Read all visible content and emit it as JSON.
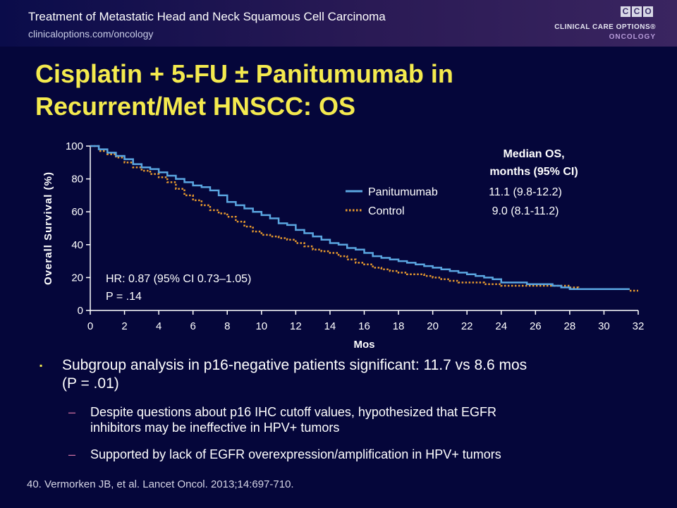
{
  "header": {
    "title": "Treatment of Metastatic Head and Neck Squamous Cell Carcinoma",
    "url": "clinicaloptions.com/oncology",
    "logo_letters": [
      "C",
      "C",
      "O"
    ],
    "logo_line1": "CLINICAL CARE OPTIONS®",
    "logo_line2": "ONCOLOGY"
  },
  "slide": {
    "title_line1": "Cisplatin + 5-FU ± Panitumumab in",
    "title_line2": "Recurrent/Met HNSCC: OS"
  },
  "chart_data": {
    "type": "line",
    "xlabel": "Mos",
    "ylabel": "Overall Survival (%)",
    "xlim": [
      0,
      32
    ],
    "ylim": [
      0,
      100
    ],
    "xticks": [
      "0",
      "2",
      "4",
      "6",
      "8",
      "10",
      "12",
      "14",
      "16",
      "18",
      "20",
      "22",
      "24",
      "26",
      "28",
      "30",
      "32"
    ],
    "yticks": [
      "0",
      "20",
      "40",
      "60",
      "80",
      "100"
    ],
    "legend_title_line1": "Median OS,",
    "legend_title_line2": "months (95% CI)",
    "annotation_line1": "HR: 0.87 (95% CI 0.73–1.05)",
    "annotation_line2": "P = .14",
    "series": [
      {
        "name": "Panitumumab",
        "median": "11.1 (9.8-12.2)",
        "color": "#5aa5e0",
        "style": "solid",
        "x": [
          0,
          0.5,
          1,
          1.5,
          2,
          2.5,
          3,
          3.5,
          4,
          4.5,
          5,
          5.5,
          6,
          6.5,
          7,
          7.5,
          8,
          8.5,
          9,
          9.5,
          10,
          10.5,
          11,
          11.5,
          12,
          12.5,
          13,
          13.5,
          14,
          14.5,
          15,
          15.5,
          16,
          16.5,
          17,
          17.5,
          18,
          18.5,
          19,
          19.5,
          20,
          20.5,
          21,
          21.5,
          22,
          22.5,
          23,
          23.5,
          24,
          24.5,
          25,
          25.5,
          26,
          26.5,
          27,
          27.5,
          28,
          28.5,
          29,
          29.5,
          30,
          30.5,
          31,
          31.5
        ],
        "y": [
          100,
          98,
          96,
          94,
          92,
          89,
          87,
          86,
          84,
          82,
          80,
          78,
          76,
          75,
          73,
          70,
          66,
          64,
          62,
          60,
          58,
          56,
          53,
          52,
          49,
          47,
          45,
          43,
          41,
          40,
          38,
          37,
          35,
          33,
          32,
          31,
          30,
          29,
          28,
          27,
          26,
          25,
          24,
          23,
          22,
          21,
          20,
          19,
          17,
          17,
          17,
          16,
          16,
          16,
          15,
          14,
          13,
          13,
          13,
          13,
          13,
          13,
          13,
          13
        ]
      },
      {
        "name": "Control",
        "median": "9.0 (8.1-11.2)",
        "color": "#e89a2e",
        "style": "dotted",
        "x": [
          0,
          0.5,
          1,
          1.5,
          2,
          2.5,
          3,
          3.5,
          4,
          4.5,
          5,
          5.5,
          6,
          6.5,
          7,
          7.5,
          8,
          8.5,
          9,
          9.5,
          10,
          10.5,
          11,
          11.5,
          12,
          12.5,
          13,
          13.5,
          14,
          14.5,
          15,
          15.5,
          16,
          16.5,
          17,
          17.5,
          18,
          18.5,
          19,
          19.5,
          20,
          20.5,
          21,
          21.5,
          22,
          22.5,
          23,
          23.5,
          24,
          24.5,
          25,
          25.5,
          26,
          26.5,
          27,
          27.5,
          28,
          28.5,
          29,
          29.5,
          30,
          30.5,
          31,
          31.5,
          32
        ],
        "y": [
          100,
          97,
          95,
          93,
          90,
          87,
          85,
          83,
          81,
          78,
          74,
          70,
          67,
          64,
          61,
          59,
          57,
          54,
          51,
          48,
          46,
          45,
          44,
          43,
          41,
          39,
          37,
          36,
          35,
          33,
          31,
          29,
          28,
          26,
          25,
          24,
          23,
          22,
          22,
          21,
          20,
          19,
          18,
          17,
          17,
          17,
          16,
          16,
          15,
          15,
          15,
          15,
          15,
          15,
          15,
          15,
          14,
          13,
          13,
          13,
          13,
          13,
          13,
          12,
          12
        ]
      }
    ]
  },
  "bullets": {
    "main_line1": "Subgroup analysis in p16-negative patients significant: 11.7 vs 8.6 mos",
    "main_line2": "(P = .01)",
    "sub1_line1": "Despite questions about p16 IHC cutoff values, hypothesized that EGFR",
    "sub1_line2": "inhibitors may be ineffective in HPV+ tumors",
    "sub2": "Supported by lack of EGFR overexpression/amplification in HPV+ tumors"
  },
  "footnote": "40. Vermorken JB, et al. Lancet Oncol. 2013;14:697-710."
}
